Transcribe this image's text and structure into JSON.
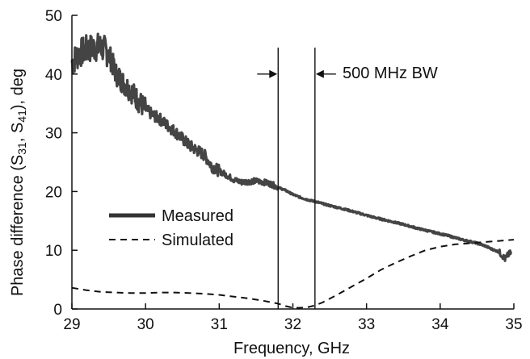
{
  "chart_data": {
    "type": "line",
    "title": "",
    "xlabel": "Frequency, GHz",
    "ylabel_parts": {
      "prefix": "Phase difference (S",
      "sub1": "31",
      "middle": ", S",
      "sub2": "41",
      "suffix": "), deg"
    },
    "xlim": [
      29,
      35
    ],
    "ylim": [
      0,
      50
    ],
    "x_ticks": [
      29,
      30,
      31,
      32,
      33,
      34,
      35
    ],
    "y_ticks": [
      0,
      10,
      20,
      30,
      40,
      50
    ],
    "grid": false,
    "legend_position": "center-left",
    "colors": {
      "measured": "#444444",
      "simulated": "#111111",
      "axes": "#111111"
    },
    "series": [
      {
        "name": "Measured",
        "style": "solid-thick",
        "noise": [
          2.5,
          2.0,
          1.0,
          0.5,
          0.15
        ],
        "points": [
          [
            29.0,
            42.0
          ],
          [
            29.1,
            43.5
          ],
          [
            29.2,
            44.2
          ],
          [
            29.3,
            44.5
          ],
          [
            29.4,
            44.6
          ],
          [
            29.5,
            43.5
          ],
          [
            29.6,
            40.0
          ],
          [
            29.7,
            38.5
          ],
          [
            29.8,
            37.2
          ],
          [
            29.9,
            35.5
          ],
          [
            30.0,
            34.0
          ],
          [
            30.1,
            33.0
          ],
          [
            30.2,
            32.3
          ],
          [
            30.3,
            31.2
          ],
          [
            30.4,
            30.2
          ],
          [
            30.5,
            29.0
          ],
          [
            30.6,
            27.8
          ],
          [
            30.7,
            27.0
          ],
          [
            30.8,
            26.2
          ],
          [
            30.9,
            24.3
          ],
          [
            31.0,
            23.5
          ],
          [
            31.1,
            22.8
          ],
          [
            31.2,
            22.0
          ],
          [
            31.3,
            21.6
          ],
          [
            31.4,
            21.7
          ],
          [
            31.5,
            21.8
          ],
          [
            31.6,
            21.6
          ],
          [
            31.7,
            21.3
          ],
          [
            31.8,
            20.7
          ],
          [
            31.9,
            20.2
          ],
          [
            32.0,
            19.5
          ],
          [
            32.1,
            19.0
          ],
          [
            32.2,
            18.6
          ],
          [
            32.3,
            18.3
          ],
          [
            32.5,
            17.6
          ],
          [
            32.7,
            17.0
          ],
          [
            32.9,
            16.3
          ],
          [
            33.1,
            15.6
          ],
          [
            33.3,
            15.0
          ],
          [
            33.5,
            14.4
          ],
          [
            33.7,
            13.7
          ],
          [
            33.9,
            13.1
          ],
          [
            34.1,
            12.5
          ],
          [
            34.3,
            11.8
          ],
          [
            34.5,
            11.2
          ],
          [
            34.6,
            10.8
          ],
          [
            34.7,
            10.2
          ],
          [
            34.8,
            9.7
          ],
          [
            34.85,
            9.0
          ],
          [
            34.88,
            8.5
          ],
          [
            34.92,
            9.2
          ],
          [
            34.96,
            9.6
          ]
        ]
      },
      {
        "name": "Simulated",
        "style": "dashed",
        "points": [
          [
            29.0,
            3.6
          ],
          [
            29.2,
            3.2
          ],
          [
            29.4,
            2.9
          ],
          [
            29.6,
            2.8
          ],
          [
            29.8,
            2.7
          ],
          [
            30.0,
            2.7
          ],
          [
            30.2,
            2.8
          ],
          [
            30.4,
            2.8
          ],
          [
            30.6,
            2.7
          ],
          [
            30.8,
            2.6
          ],
          [
            31.0,
            2.4
          ],
          [
            31.2,
            2.1
          ],
          [
            31.4,
            1.8
          ],
          [
            31.6,
            1.4
          ],
          [
            31.8,
            0.9
          ],
          [
            31.9,
            0.5
          ],
          [
            32.0,
            0.2
          ],
          [
            32.1,
            0.2
          ],
          [
            32.2,
            0.3
          ],
          [
            32.3,
            0.6
          ],
          [
            32.4,
            1.1
          ],
          [
            32.6,
            2.4
          ],
          [
            32.8,
            3.8
          ],
          [
            33.0,
            5.2
          ],
          [
            33.2,
            6.7
          ],
          [
            33.4,
            7.9
          ],
          [
            33.6,
            9.0
          ],
          [
            33.8,
            10.0
          ],
          [
            34.0,
            10.6
          ],
          [
            34.2,
            11.0
          ],
          [
            34.4,
            11.2
          ],
          [
            34.6,
            11.4
          ],
          [
            34.8,
            11.6
          ],
          [
            35.0,
            11.8
          ]
        ]
      }
    ],
    "annotations": {
      "bandwidth_label": "500 MHz BW",
      "bandwidth_lines_x": [
        31.8,
        32.3
      ],
      "line_top_y": 44.5,
      "arrow_y": 40.0
    }
  }
}
